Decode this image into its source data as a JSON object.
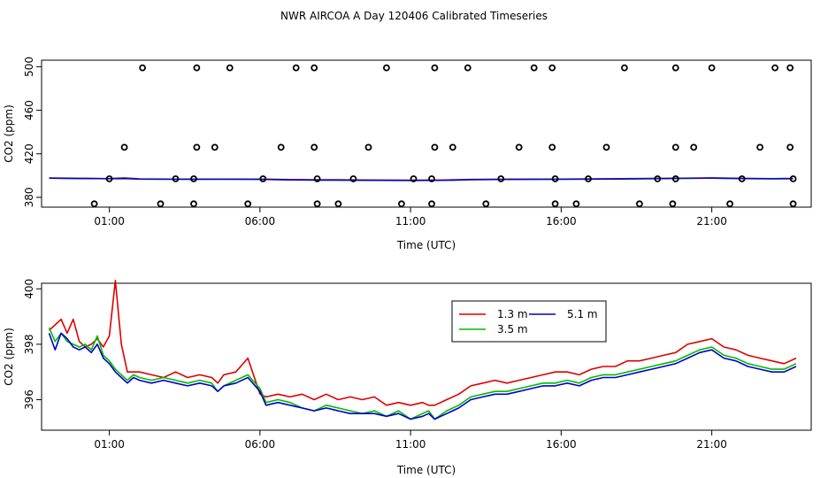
{
  "figure_title": "NWR AIRCOA A  Day 120406  Calibrated Timeseries",
  "chart_data": [
    {
      "type": "scatter",
      "title": "",
      "xlabel": "Time (UTC)",
      "ylabel": "CO2 (ppm)",
      "xlim": [
        -1.25,
        24.3
      ],
      "ylim": [
        371,
        506
      ],
      "grid": false,
      "xticks": [
        1,
        6,
        11,
        16,
        21
      ],
      "xtick_labels": [
        "01:00",
        "06:00",
        "11:00",
        "16:00",
        "21:00"
      ],
      "yticks": [
        380,
        420,
        460,
        500
      ],
      "ytick_labels": [
        "380",
        "420",
        "460",
        "500"
      ],
      "point_color": "#000000",
      "points": [
        [
          0.5,
          374
        ],
        [
          1.0,
          397
        ],
        [
          1.5,
          426
        ],
        [
          2.1,
          499
        ],
        [
          2.7,
          374
        ],
        [
          3.2,
          397
        ],
        [
          3.8,
          374
        ],
        [
          3.8,
          397
        ],
        [
          3.9,
          426
        ],
        [
          3.9,
          499
        ],
        [
          4.5,
          426
        ],
        [
          5.0,
          499
        ],
        [
          5.6,
          374
        ],
        [
          6.1,
          397
        ],
        [
          6.7,
          426
        ],
        [
          7.2,
          499
        ],
        [
          7.8,
          426
        ],
        [
          7.8,
          499
        ],
        [
          7.9,
          397
        ],
        [
          7.9,
          374
        ],
        [
          8.6,
          374
        ],
        [
          9.1,
          397
        ],
        [
          9.6,
          426
        ],
        [
          10.2,
          499
        ],
        [
          10.7,
          374
        ],
        [
          11.1,
          397
        ],
        [
          11.7,
          374
        ],
        [
          11.7,
          397
        ],
        [
          11.8,
          426
        ],
        [
          11.8,
          499
        ],
        [
          12.4,
          426
        ],
        [
          12.9,
          499
        ],
        [
          13.5,
          374
        ],
        [
          14.0,
          397
        ],
        [
          14.6,
          426
        ],
        [
          15.1,
          499
        ],
        [
          15.7,
          426
        ],
        [
          15.7,
          499
        ],
        [
          15.8,
          397
        ],
        [
          15.8,
          374
        ],
        [
          16.5,
          374
        ],
        [
          16.9,
          397
        ],
        [
          17.5,
          426
        ],
        [
          18.1,
          499
        ],
        [
          18.6,
          374
        ],
        [
          19.2,
          397
        ],
        [
          19.7,
          374
        ],
        [
          19.8,
          397
        ],
        [
          19.8,
          426
        ],
        [
          19.8,
          499
        ],
        [
          20.4,
          426
        ],
        [
          21.0,
          499
        ],
        [
          21.6,
          374
        ],
        [
          22.0,
          397
        ],
        [
          22.6,
          426
        ],
        [
          23.1,
          499
        ],
        [
          23.6,
          499
        ],
        [
          23.6,
          426
        ],
        [
          23.7,
          397
        ],
        [
          23.7,
          374
        ]
      ],
      "series": [
        {
          "name": "1.3 m",
          "color": "#dd0000",
          "x": [
            -1,
            0,
            0.5,
            1,
            1.5,
            2,
            3,
            4,
            5,
            6,
            7,
            8,
            9,
            10,
            11,
            12,
            13,
            14,
            15,
            16,
            17,
            18,
            19,
            20,
            21,
            22,
            23,
            23.7
          ],
          "values": [
            397.8,
            397.6,
            397.4,
            397.3,
            397.9,
            397.0,
            396.9,
            396.8,
            396.9,
            396.8,
            396.4,
            396.2,
            396.1,
            395.9,
            395.8,
            395.9,
            396.5,
            396.7,
            396.8,
            396.9,
            397.0,
            397.2,
            397.4,
            397.7,
            397.9,
            397.5,
            397.3,
            397.4
          ]
        },
        {
          "name": "3.5 m",
          "color": "#00bb00",
          "x": [
            -1,
            0,
            0.5,
            1,
            1.5,
            2,
            3,
            4,
            5,
            6,
            7,
            8,
            9,
            10,
            11,
            12,
            13,
            14,
            15,
            16,
            17,
            18,
            19,
            20,
            21,
            22,
            23,
            23.7
          ],
          "values": [
            397.7,
            397.4,
            397.3,
            397.2,
            397.4,
            396.8,
            396.7,
            396.6,
            396.7,
            396.6,
            396.0,
            395.9,
            395.8,
            395.6,
            395.5,
            395.6,
            396.2,
            396.5,
            396.6,
            396.7,
            396.8,
            397.0,
            397.2,
            397.5,
            397.7,
            397.3,
            397.1,
            397.2
          ]
        },
        {
          "name": "5.1 m",
          "color": "#0000cc",
          "x": [
            -1,
            0,
            0.5,
            1,
            1.5,
            2,
            3,
            4,
            5,
            6,
            7,
            8,
            9,
            10,
            11,
            12,
            13,
            14,
            15,
            16,
            17,
            18,
            19,
            20,
            21,
            22,
            23,
            23.7
          ],
          "values": [
            397.6,
            397.3,
            397.2,
            397.1,
            397.3,
            396.7,
            396.6,
            396.6,
            396.6,
            396.5,
            396.0,
            395.8,
            395.7,
            395.6,
            395.5,
            395.6,
            396.2,
            396.4,
            396.5,
            396.6,
            396.7,
            396.9,
            397.1,
            397.4,
            397.6,
            397.2,
            397.0,
            397.1
          ]
        }
      ]
    },
    {
      "type": "line",
      "title": "",
      "xlabel": "Time (UTC)",
      "ylabel": "CO2 (ppm)",
      "xlim": [
        -1.25,
        24.3
      ],
      "ylim": [
        394.9,
        400.2
      ],
      "grid": false,
      "xticks": [
        1,
        6,
        11,
        16,
        21
      ],
      "xtick_labels": [
        "01:00",
        "06:00",
        "11:00",
        "16:00",
        "21:00"
      ],
      "yticks": [
        396,
        398,
        400
      ],
      "ytick_labels": [
        "396",
        "398",
        "400"
      ],
      "legend_position": "top-center",
      "legend_layout": [
        [
          "1.3 m",
          "5.1 m"
        ],
        [
          "3.5 m"
        ]
      ],
      "x": [
        -1.0,
        -0.8,
        -0.6,
        -0.4,
        -0.2,
        0.0,
        0.2,
        0.4,
        0.6,
        0.8,
        1.0,
        1.2,
        1.4,
        1.6,
        1.8,
        2.0,
        2.4,
        2.8,
        3.2,
        3.6,
        4.0,
        4.4,
        4.6,
        4.8,
        5.2,
        5.6,
        6.0,
        6.2,
        6.6,
        7.0,
        7.4,
        7.8,
        8.2,
        8.6,
        9.0,
        9.4,
        9.8,
        10.2,
        10.6,
        11.0,
        11.4,
        11.6,
        11.8,
        12.2,
        12.6,
        13.0,
        13.4,
        13.8,
        14.2,
        14.6,
        15.0,
        15.4,
        15.8,
        16.2,
        16.6,
        17.0,
        17.4,
        17.8,
        18.2,
        18.6,
        19.0,
        19.4,
        19.8,
        20.2,
        20.6,
        21.0,
        21.4,
        21.8,
        22.2,
        22.6,
        23.0,
        23.4,
        23.8
      ],
      "series": [
        {
          "name": "1.3 m",
          "color": "#dd0000",
          "values": [
            398.5,
            398.7,
            398.9,
            398.4,
            398.9,
            398.1,
            397.9,
            398.0,
            398.2,
            397.9,
            398.3,
            400.3,
            398.0,
            397.0,
            397.0,
            397.0,
            396.9,
            396.8,
            397.0,
            396.8,
            396.9,
            396.8,
            396.6,
            396.9,
            397.0,
            397.5,
            396.2,
            396.1,
            396.2,
            396.1,
            396.2,
            396.0,
            396.2,
            396.0,
            396.1,
            396.0,
            396.1,
            395.8,
            395.9,
            395.8,
            395.9,
            395.8,
            395.8,
            396.0,
            396.2,
            396.5,
            396.6,
            396.7,
            396.6,
            396.7,
            396.8,
            396.9,
            397.0,
            397.0,
            396.9,
            397.1,
            397.2,
            397.2,
            397.4,
            397.4,
            397.5,
            397.6,
            397.7,
            398.0,
            398.1,
            398.2,
            397.9,
            397.8,
            397.6,
            397.5,
            397.4,
            397.3,
            397.5
          ]
        },
        {
          "name": "3.5 m",
          "color": "#00bb00",
          "values": [
            398.6,
            398.1,
            398.4,
            398.1,
            398.0,
            397.9,
            398.0,
            397.8,
            398.3,
            397.6,
            397.4,
            397.1,
            396.9,
            396.7,
            396.9,
            396.8,
            396.7,
            396.8,
            396.7,
            396.6,
            396.7,
            396.6,
            396.3,
            396.5,
            396.7,
            396.9,
            396.4,
            395.9,
            396.0,
            395.9,
            395.7,
            395.6,
            395.8,
            395.7,
            395.6,
            395.5,
            395.6,
            395.4,
            395.6,
            395.3,
            395.5,
            395.6,
            395.3,
            395.6,
            395.8,
            396.1,
            396.2,
            396.3,
            396.3,
            396.4,
            396.5,
            396.6,
            396.6,
            396.7,
            396.6,
            396.8,
            396.9,
            396.9,
            397.0,
            397.1,
            397.2,
            397.3,
            397.4,
            397.6,
            397.8,
            397.9,
            397.6,
            397.5,
            397.3,
            397.2,
            397.1,
            397.1,
            397.3
          ]
        },
        {
          "name": "5.1 m",
          "color": "#0000cc",
          "values": [
            398.4,
            397.8,
            398.4,
            398.2,
            397.9,
            397.8,
            397.9,
            397.7,
            398.0,
            397.5,
            397.3,
            397.0,
            396.8,
            396.6,
            396.8,
            396.7,
            396.6,
            396.7,
            396.6,
            396.5,
            396.6,
            396.5,
            396.3,
            396.5,
            396.6,
            396.8,
            396.3,
            395.8,
            395.9,
            395.8,
            395.7,
            395.6,
            395.7,
            395.6,
            395.5,
            395.5,
            395.5,
            395.4,
            395.5,
            395.3,
            395.4,
            395.5,
            395.3,
            395.5,
            395.7,
            396.0,
            396.1,
            396.2,
            396.2,
            396.3,
            396.4,
            396.5,
            396.5,
            396.6,
            396.5,
            396.7,
            396.8,
            396.8,
            396.9,
            397.0,
            397.1,
            397.2,
            397.3,
            397.5,
            397.7,
            397.8,
            397.5,
            397.4,
            397.2,
            397.1,
            397.0,
            397.0,
            397.2
          ]
        }
      ]
    }
  ]
}
